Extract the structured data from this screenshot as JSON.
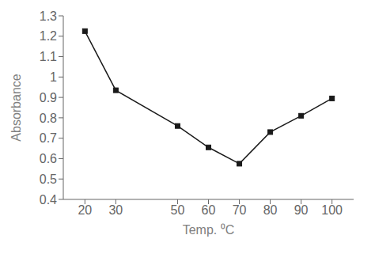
{
  "chart_data": {
    "type": "line",
    "x": [
      20,
      30,
      50,
      60,
      70,
      80,
      90,
      100
    ],
    "values": [
      1.225,
      0.935,
      0.76,
      0.655,
      0.575,
      0.73,
      0.81,
      0.895
    ],
    "color": "#1a1a1a",
    "marker": "square",
    "xlabel": "Temp. ⁰C",
    "ylabel": "Absorbance",
    "xlim": [
      13,
      107
    ],
    "ylim": [
      0.4,
      1.3
    ],
    "xticks": [
      20,
      30,
      50,
      60,
      70,
      80,
      90,
      100
    ],
    "yticks": [
      0.4,
      0.5,
      0.6,
      0.7,
      0.8,
      0.9,
      1.0,
      1.1,
      1.2,
      1.3
    ],
    "grid": false
  }
}
